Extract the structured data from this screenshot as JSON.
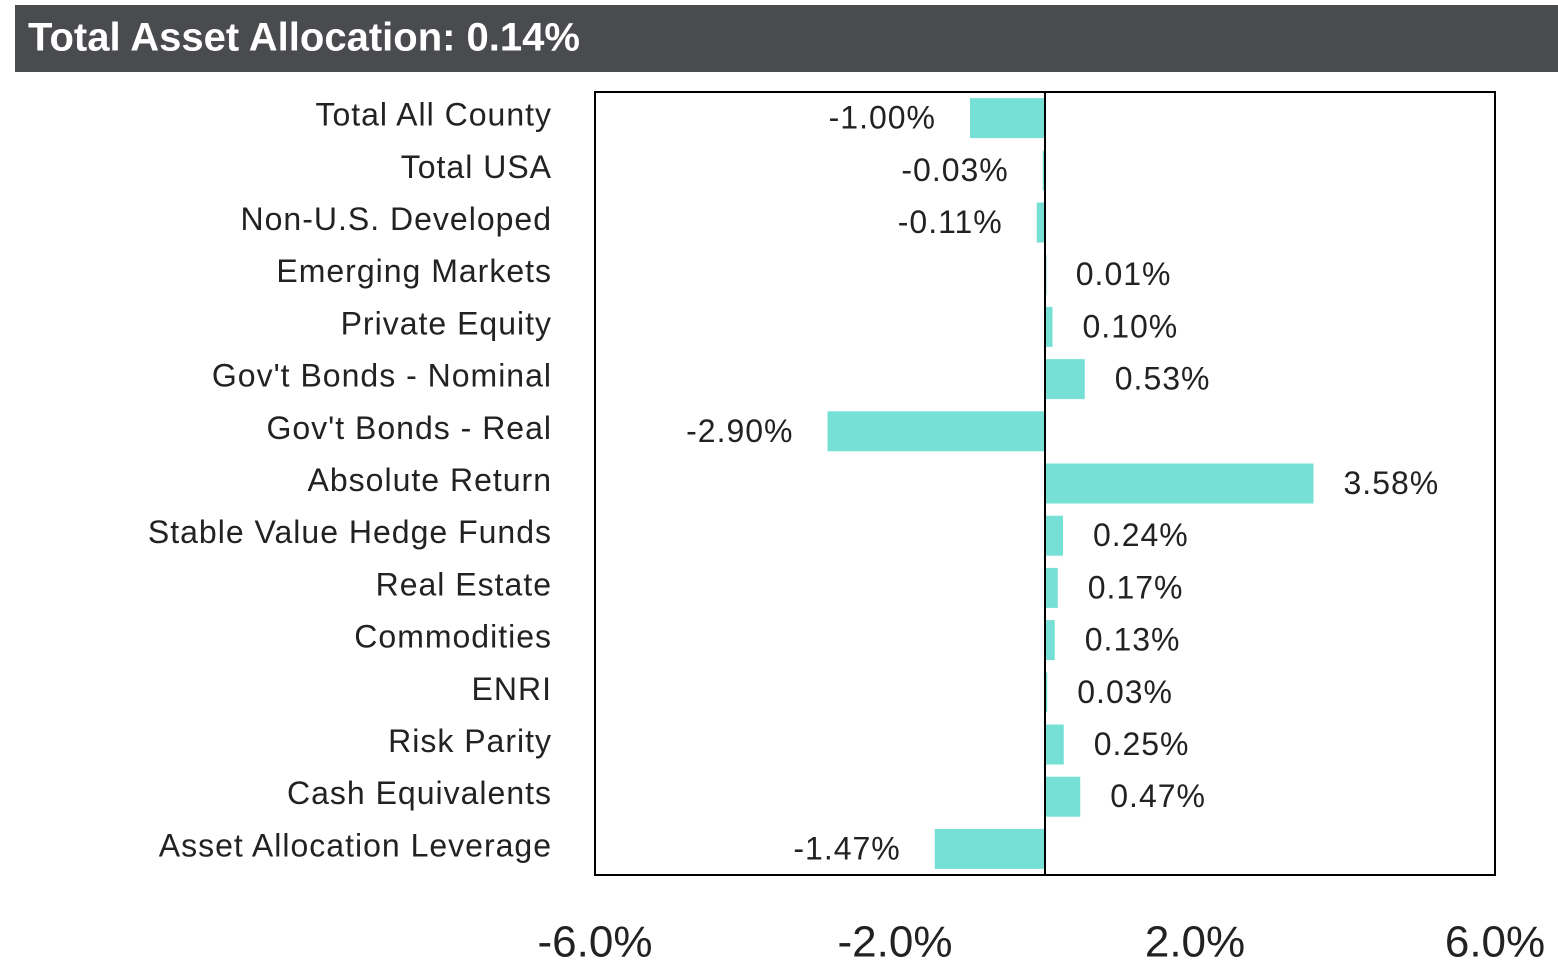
{
  "chart_data": {
    "type": "bar",
    "orientation": "horizontal",
    "title": "Total Asset Allocation: 0.14%",
    "categories": [
      "Total All County",
      "Total USA",
      "Non-U.S. Developed",
      "Emerging Markets",
      "Private Equity",
      "Gov't Bonds - Nominal",
      "Gov't Bonds - Real",
      "Absolute Return",
      "Stable Value Hedge Funds",
      "Real Estate",
      "Commodities",
      "ENRI",
      "Risk Parity",
      "Cash Equivalents",
      "Asset Allocation Leverage"
    ],
    "values": [
      -1.0,
      -0.03,
      -0.11,
      0.01,
      0.1,
      0.53,
      -2.9,
      3.58,
      0.24,
      0.17,
      0.13,
      0.03,
      0.25,
      0.47,
      -1.47
    ],
    "value_labels": [
      "-1.00%",
      "-0.03%",
      "-0.11%",
      "0.01%",
      "0.10%",
      "0.53%",
      "-2.90%",
      "3.58%",
      "0.24%",
      "0.17%",
      "0.13%",
      "0.03%",
      "0.25%",
      "0.47%",
      "-1.47%"
    ],
    "color": "#76e0d6",
    "xlim": [
      -6,
      6
    ],
    "xticks": [
      {
        "value": -6,
        "label": "-6.0%"
      },
      {
        "value": -2,
        "label": "-2.0%"
      },
      {
        "value": 2,
        "label": "2.0%"
      },
      {
        "value": 6,
        "label": "6.0%"
      }
    ],
    "grid": false
  }
}
